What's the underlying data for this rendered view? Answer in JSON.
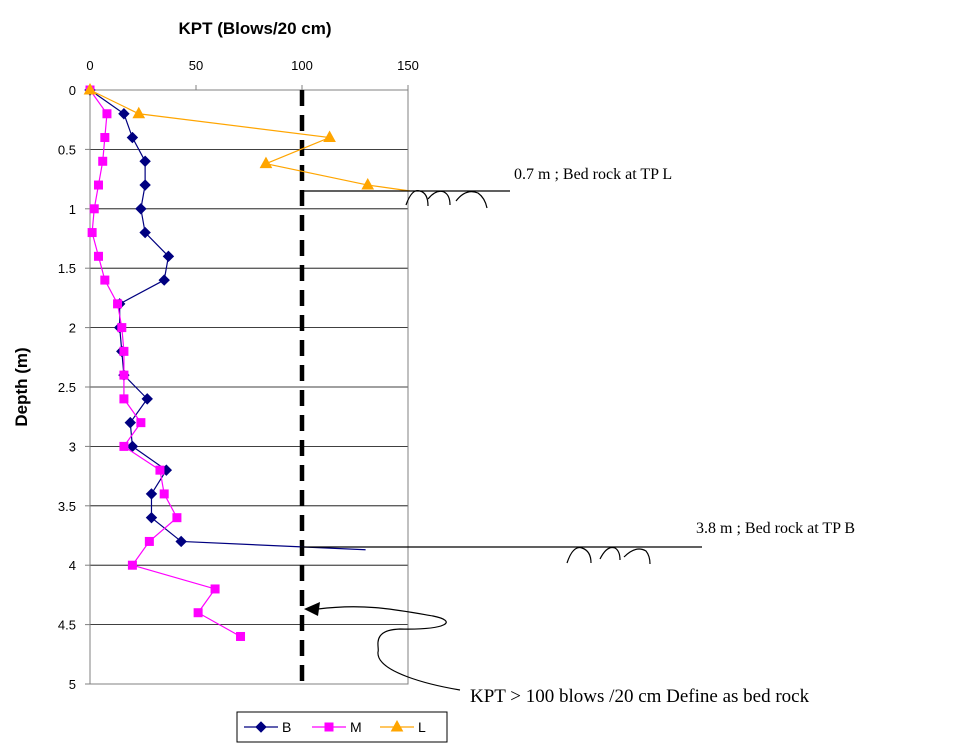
{
  "chart_data": {
    "type": "line",
    "title": "KPT (Blows/20 cm)",
    "xlabel": "KPT (Blows/20 cm)",
    "ylabel": "Depth (m)",
    "x_axis_position": "top",
    "y_inverted": true,
    "xlim": [
      0,
      150
    ],
    "ylim": [
      0,
      5
    ],
    "x_ticks": [
      "0",
      "50",
      "100",
      "150"
    ],
    "y_ticks": [
      "0",
      "0.5",
      "1",
      "1.5",
      "2",
      "2.5",
      "3",
      "3.5",
      "4",
      "4.5",
      "5"
    ],
    "grid": "horizontal",
    "legend_placement": "bottom",
    "series": [
      {
        "name": "B",
        "color": "#000080",
        "marker": "diamond",
        "points": [
          [
            0,
            0
          ],
          [
            16,
            0.2
          ],
          [
            20,
            0.4
          ],
          [
            26,
            0.6
          ],
          [
            26,
            0.8
          ],
          [
            24,
            1.0
          ],
          [
            26,
            1.2
          ],
          [
            37,
            1.4
          ],
          [
            35,
            1.6
          ],
          [
            14,
            1.8
          ],
          [
            14,
            2.0
          ],
          [
            15,
            2.2
          ],
          [
            16,
            2.4
          ],
          [
            27,
            2.6
          ],
          [
            19,
            2.8
          ],
          [
            20,
            3.0
          ],
          [
            36,
            3.2
          ],
          [
            29,
            3.4
          ],
          [
            29,
            3.6
          ],
          [
            43,
            3.8
          ],
          [
            130,
            3.87
          ]
        ]
      },
      {
        "name": "M",
        "color": "#FF00FF",
        "marker": "square",
        "points": [
          [
            0,
            0
          ],
          [
            8,
            0.2
          ],
          [
            7,
            0.4
          ],
          [
            6,
            0.6
          ],
          [
            4,
            0.8
          ],
          [
            2,
            1.0
          ],
          [
            1,
            1.2
          ],
          [
            4,
            1.4
          ],
          [
            7,
            1.6
          ],
          [
            13,
            1.8
          ],
          [
            15,
            2.0
          ],
          [
            16,
            2.2
          ],
          [
            16,
            2.4
          ],
          [
            16,
            2.6
          ],
          [
            24,
            2.8
          ],
          [
            16,
            3.0
          ],
          [
            33,
            3.2
          ],
          [
            35,
            3.4
          ],
          [
            41,
            3.6
          ],
          [
            28,
            3.8
          ],
          [
            20,
            4.0
          ],
          [
            59,
            4.2
          ],
          [
            51,
            4.4
          ],
          [
            71,
            4.6
          ]
        ]
      },
      {
        "name": "L",
        "color": "#FFA500",
        "marker": "triangle",
        "points": [
          [
            0,
            0
          ],
          [
            23,
            0.2
          ],
          [
            113,
            0.4
          ],
          [
            83,
            0.62
          ],
          [
            131,
            0.8
          ],
          [
            151,
            0.85
          ]
        ]
      }
    ],
    "reference_line": {
      "x": 100,
      "style": "dashed",
      "color": "#000000"
    },
    "annotations": [
      {
        "text": "0.7 m ; Bed rock at TP L",
        "depth_m": 0.85
      },
      {
        "text": "3.8 m ; Bed rock at TP B",
        "depth_m": 3.87
      },
      {
        "text": "KPT > 100 blows /20 cm Define as bed rock"
      }
    ]
  }
}
